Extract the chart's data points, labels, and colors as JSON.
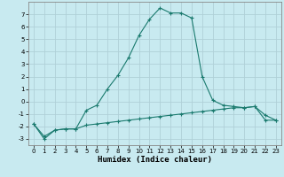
{
  "xlabel": "Humidex (Indice chaleur)",
  "background_color": "#c8eaf0",
  "grid_color": "#b0d0d8",
  "line_color": "#1a7a6e",
  "xlim": [
    -0.5,
    23.5
  ],
  "ylim": [
    -3.5,
    8.0
  ],
  "x_ticks": [
    0,
    1,
    2,
    3,
    4,
    5,
    6,
    7,
    8,
    9,
    10,
    11,
    12,
    13,
    14,
    15,
    16,
    17,
    18,
    19,
    20,
    21,
    22,
    23
  ],
  "y_ticks": [
    -3,
    -2,
    -1,
    0,
    1,
    2,
    3,
    4,
    5,
    6,
    7
  ],
  "line1_x": [
    0,
    1,
    2,
    3,
    4,
    5,
    6,
    7,
    8,
    9,
    10,
    11,
    12,
    13,
    14,
    15,
    16,
    17,
    18,
    19,
    20,
    21,
    22,
    23
  ],
  "line1_y": [
    -1.8,
    -3.0,
    -2.3,
    -2.2,
    -2.2,
    -0.7,
    -0.3,
    1.0,
    2.1,
    3.5,
    5.3,
    6.6,
    7.5,
    7.1,
    7.1,
    6.7,
    2.0,
    0.1,
    -0.3,
    -0.4,
    -0.5,
    -0.4,
    -1.1,
    -1.5
  ],
  "line2_x": [
    0,
    1,
    2,
    3,
    4,
    5,
    6,
    7,
    8,
    9,
    10,
    11,
    12,
    13,
    14,
    15,
    16,
    17,
    18,
    19,
    20,
    21,
    22,
    23
  ],
  "line2_y": [
    -1.8,
    -2.8,
    -2.3,
    -2.2,
    -2.2,
    -1.9,
    -1.8,
    -1.7,
    -1.6,
    -1.5,
    -1.4,
    -1.3,
    -1.2,
    -1.1,
    -1.0,
    -0.9,
    -0.8,
    -0.7,
    -0.6,
    -0.5,
    -0.5,
    -0.4,
    -1.5,
    -1.5
  ]
}
